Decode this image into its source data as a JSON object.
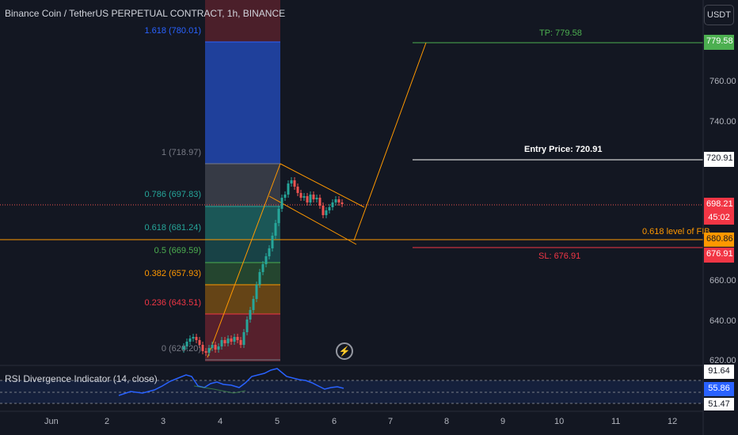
{
  "header": {
    "title": "Binance Coin / TetherUS PERPETUAL CONTRACT, 1h, BINANCE",
    "currency_button": "USDT"
  },
  "price_axis": {
    "ticks": [
      "760.00",
      "740.00",
      "660.00",
      "640.00",
      "620.00"
    ],
    "tags": {
      "tp": "779.58",
      "entry": "720.91",
      "current": "698.21",
      "countdown": "45:02",
      "fib": "680.86",
      "sl": "676.91"
    }
  },
  "time_axis": {
    "ticks": [
      "Jun",
      "2",
      "3",
      "4",
      "5",
      "6",
      "7",
      "8",
      "9",
      "10",
      "11",
      "12"
    ]
  },
  "fib_levels": [
    {
      "label": "1.618 (780.01)",
      "color": "#2962ff"
    },
    {
      "label": "1 (718.97)",
      "color": "#787b86"
    },
    {
      "label": "0.786 (697.83)",
      "color": "#26a69a"
    },
    {
      "label": "0.618 (681.24)",
      "color": "#26a69a"
    },
    {
      "label": "0.5 (669.59)",
      "color": "#4caf50"
    },
    {
      "label": "0.382 (657.93)",
      "color": "#ff9800"
    },
    {
      "label": "0.236 (643.51)",
      "color": "#f23645"
    },
    {
      "label": "0 (620.20)",
      "color": "#787b86"
    }
  ],
  "annotations": {
    "tp_label": "TP: 779.58",
    "entry_label": "Entry Price: 720.91",
    "fib_line_label": "0.618 level of FIB",
    "sl_label": "SL: 676.91"
  },
  "rsi": {
    "title": "RSI Divergence Indicator (14, close)",
    "tags": {
      "upper": "91.64",
      "current": "55.86",
      "lower": "51.47"
    }
  },
  "colors": {
    "background": "#131722",
    "up": "#26a69a",
    "down": "#ef5350",
    "tp": "#4caf50",
    "sl": "#f23645",
    "entry": "#ffffff",
    "fib_line": "#ff9800",
    "rsi": "#2962ff"
  },
  "icons": {
    "alert": "flash-icon"
  }
}
